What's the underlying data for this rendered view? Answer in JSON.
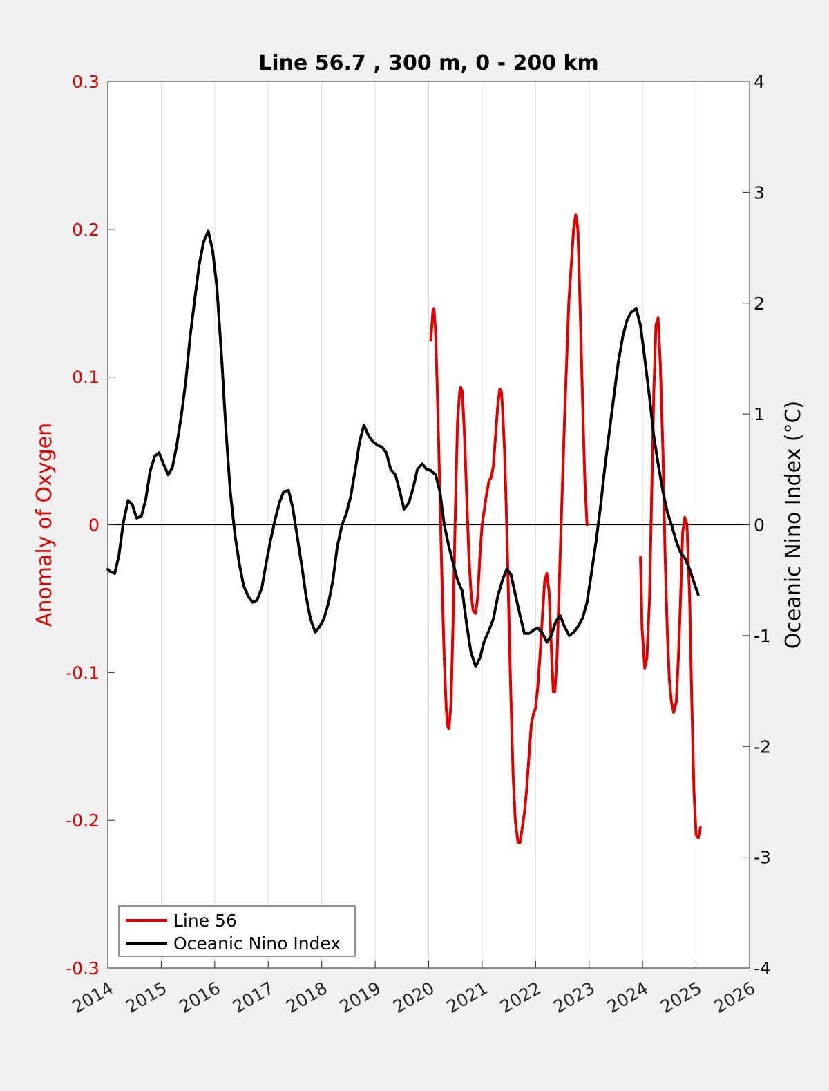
{
  "chart_data": {
    "type": "line",
    "title": "Line 56.7 , 300 m, 0 - 200 km",
    "ylabel_left": "Anomaly of Oxygen",
    "ylabel_right": "Oceanic Nino Index (°C)",
    "xlabel": "",
    "xlim": [
      2014,
      2026
    ],
    "ylim_left": [
      -0.3,
      0.3
    ],
    "ylim_right": [
      -4,
      4
    ],
    "x_ticks": [
      "2014",
      "2015",
      "2016",
      "2017",
      "2018",
      "2019",
      "2020",
      "2021",
      "2022",
      "2023",
      "2024",
      "2025",
      "2026"
    ],
    "y_ticks_left": [
      "0.3",
      "0.2",
      "0.1",
      "0",
      "-0.1",
      "-0.2",
      "-0.3"
    ],
    "y_ticks_right": [
      "4",
      "3",
      "2",
      "1",
      "0",
      "-1",
      "-2",
      "-3",
      "-4"
    ],
    "grid": "vertical",
    "legend_position": "bottom-left",
    "colors": {
      "left_axis": "#e00000",
      "line56": "#e00000",
      "oni": "#000000",
      "background": "#f0f0f0",
      "plot_bg": "#ffffff",
      "grid": "#dcdcdc"
    },
    "series": [
      {
        "name": "Line 56",
        "axis": "left",
        "segments": [
          [
            [
              2020.04,
              0.125
            ],
            [
              2020.08,
              0.145
            ],
            [
              2020.1,
              0.146
            ],
            [
              2020.13,
              0.13
            ],
            [
              2020.17,
              0.08
            ],
            [
              2020.21,
              0.02
            ],
            [
              2020.25,
              -0.04
            ],
            [
              2020.29,
              -0.09
            ],
            [
              2020.33,
              -0.125
            ],
            [
              2020.36,
              -0.137
            ],
            [
              2020.38,
              -0.138
            ],
            [
              2020.42,
              -0.12
            ],
            [
              2020.46,
              -0.06
            ],
            [
              2020.5,
              0.01
            ],
            [
              2020.54,
              0.07
            ],
            [
              2020.58,
              0.09
            ],
            [
              2020.6,
              0.093
            ],
            [
              2020.63,
              0.09
            ],
            [
              2020.67,
              0.06
            ],
            [
              2020.71,
              0.02
            ],
            [
              2020.75,
              -0.02
            ],
            [
              2020.79,
              -0.045
            ],
            [
              2020.83,
              -0.058
            ],
            [
              2020.88,
              -0.06
            ],
            [
              2020.92,
              -0.048
            ],
            [
              2020.96,
              -0.02
            ],
            [
              2021.0,
              0.0
            ],
            [
              2021.04,
              0.01
            ],
            [
              2021.08,
              0.02
            ],
            [
              2021.13,
              0.03
            ],
            [
              2021.17,
              0.032
            ],
            [
              2021.21,
              0.04
            ],
            [
              2021.25,
              0.06
            ],
            [
              2021.29,
              0.08
            ],
            [
              2021.33,
              0.092
            ],
            [
              2021.36,
              0.09
            ],
            [
              2021.38,
              0.08
            ],
            [
              2021.42,
              0.05
            ],
            [
              2021.46,
              0.0
            ],
            [
              2021.5,
              -0.06
            ],
            [
              2021.54,
              -0.12
            ],
            [
              2021.58,
              -0.17
            ],
            [
              2021.62,
              -0.2
            ],
            [
              2021.67,
              -0.215
            ],
            [
              2021.71,
              -0.215
            ],
            [
              2021.75,
              -0.205
            ],
            [
              2021.79,
              -0.195
            ],
            [
              2021.83,
              -0.18
            ],
            [
              2021.88,
              -0.155
            ],
            [
              2021.92,
              -0.135
            ],
            [
              2021.96,
              -0.128
            ],
            [
              2022.0,
              -0.124
            ],
            [
              2022.04,
              -0.11
            ],
            [
              2022.08,
              -0.09
            ],
            [
              2022.13,
              -0.06
            ],
            [
              2022.17,
              -0.038
            ],
            [
              2022.21,
              -0.033
            ],
            [
              2022.25,
              -0.045
            ],
            [
              2022.29,
              -0.08
            ],
            [
              2022.33,
              -0.113
            ],
            [
              2022.36,
              -0.113
            ],
            [
              2022.4,
              -0.09
            ],
            [
              2022.46,
              -0.02
            ],
            [
              2022.54,
              0.07
            ],
            [
              2022.62,
              0.15
            ],
            [
              2022.71,
              0.2
            ],
            [
              2022.75,
              0.21
            ],
            [
              2022.79,
              0.2
            ],
            [
              2022.83,
              0.15
            ],
            [
              2022.88,
              0.08
            ],
            [
              2022.92,
              0.03
            ],
            [
              2022.96,
              0.0
            ]
          ],
          [
            [
              2023.96,
              -0.022
            ],
            [
              2023.99,
              -0.07
            ],
            [
              2024.04,
              -0.097
            ],
            [
              2024.08,
              -0.09
            ],
            [
              2024.13,
              -0.05
            ],
            [
              2024.17,
              0.02
            ],
            [
              2024.21,
              0.09
            ],
            [
              2024.25,
              0.135
            ],
            [
              2024.29,
              0.14
            ],
            [
              2024.33,
              0.11
            ],
            [
              2024.38,
              0.05
            ],
            [
              2024.42,
              -0.02
            ],
            [
              2024.46,
              -0.07
            ],
            [
              2024.5,
              -0.105
            ],
            [
              2024.54,
              -0.12
            ],
            [
              2024.58,
              -0.127
            ],
            [
              2024.63,
              -0.12
            ],
            [
              2024.67,
              -0.09
            ],
            [
              2024.71,
              -0.05
            ],
            [
              2024.75,
              -0.005
            ],
            [
              2024.79,
              0.005
            ],
            [
              2024.83,
              0.0
            ],
            [
              2024.88,
              -0.05
            ],
            [
              2024.92,
              -0.12
            ],
            [
              2024.96,
              -0.18
            ],
            [
              2025.0,
              -0.21
            ],
            [
              2025.04,
              -0.212
            ],
            [
              2025.08,
              -0.205
            ]
          ]
        ]
      },
      {
        "name": "Oceanic Nino Index",
        "axis": "right",
        "points": [
          [
            2014.0,
            -0.4
          ],
          [
            2014.04,
            -0.42
          ],
          [
            2014.13,
            -0.44
          ],
          [
            2014.21,
            -0.27
          ],
          [
            2014.29,
            0.02
          ],
          [
            2014.38,
            0.22
          ],
          [
            2014.46,
            0.18
          ],
          [
            2014.54,
            0.06
          ],
          [
            2014.63,
            0.08
          ],
          [
            2014.71,
            0.23
          ],
          [
            2014.79,
            0.48
          ],
          [
            2014.88,
            0.62
          ],
          [
            2014.96,
            0.65
          ],
          [
            2015.04,
            0.55
          ],
          [
            2015.13,
            0.45
          ],
          [
            2015.21,
            0.52
          ],
          [
            2015.29,
            0.72
          ],
          [
            2015.38,
            1.0
          ],
          [
            2015.46,
            1.3
          ],
          [
            2015.54,
            1.7
          ],
          [
            2015.63,
            2.05
          ],
          [
            2015.71,
            2.35
          ],
          [
            2015.79,
            2.55
          ],
          [
            2015.88,
            2.65
          ],
          [
            2015.96,
            2.48
          ],
          [
            2016.04,
            2.15
          ],
          [
            2016.13,
            1.5
          ],
          [
            2016.21,
            0.85
          ],
          [
            2016.29,
            0.3
          ],
          [
            2016.38,
            -0.1
          ],
          [
            2016.46,
            -0.35
          ],
          [
            2016.54,
            -0.55
          ],
          [
            2016.63,
            -0.65
          ],
          [
            2016.71,
            -0.7
          ],
          [
            2016.79,
            -0.68
          ],
          [
            2016.88,
            -0.57
          ],
          [
            2016.96,
            -0.35
          ],
          [
            2017.04,
            -0.15
          ],
          [
            2017.13,
            0.05
          ],
          [
            2017.21,
            0.2
          ],
          [
            2017.29,
            0.3
          ],
          [
            2017.38,
            0.31
          ],
          [
            2017.46,
            0.15
          ],
          [
            2017.54,
            -0.1
          ],
          [
            2017.63,
            -0.38
          ],
          [
            2017.71,
            -0.65
          ],
          [
            2017.79,
            -0.85
          ],
          [
            2017.88,
            -0.97
          ],
          [
            2017.96,
            -0.92
          ],
          [
            2018.04,
            -0.85
          ],
          [
            2018.13,
            -0.7
          ],
          [
            2018.21,
            -0.5
          ],
          [
            2018.29,
            -0.2
          ],
          [
            2018.38,
            0.0
          ],
          [
            2018.46,
            0.1
          ],
          [
            2018.54,
            0.25
          ],
          [
            2018.63,
            0.5
          ],
          [
            2018.71,
            0.75
          ],
          [
            2018.79,
            0.9
          ],
          [
            2018.88,
            0.8
          ],
          [
            2018.96,
            0.75
          ],
          [
            2019.04,
            0.72
          ],
          [
            2019.13,
            0.7
          ],
          [
            2019.21,
            0.65
          ],
          [
            2019.29,
            0.5
          ],
          [
            2019.38,
            0.45
          ],
          [
            2019.46,
            0.3
          ],
          [
            2019.54,
            0.14
          ],
          [
            2019.63,
            0.2
          ],
          [
            2019.71,
            0.33
          ],
          [
            2019.79,
            0.5
          ],
          [
            2019.88,
            0.55
          ],
          [
            2019.96,
            0.5
          ],
          [
            2020.04,
            0.49
          ],
          [
            2020.13,
            0.45
          ],
          [
            2020.21,
            0.3
          ],
          [
            2020.29,
            0.0
          ],
          [
            2020.38,
            -0.2
          ],
          [
            2020.46,
            -0.35
          ],
          [
            2020.54,
            -0.5
          ],
          [
            2020.63,
            -0.6
          ],
          [
            2020.71,
            -0.9
          ],
          [
            2020.79,
            -1.15
          ],
          [
            2020.88,
            -1.28
          ],
          [
            2020.96,
            -1.2
          ],
          [
            2021.04,
            -1.05
          ],
          [
            2021.13,
            -0.95
          ],
          [
            2021.21,
            -0.85
          ],
          [
            2021.29,
            -0.65
          ],
          [
            2021.38,
            -0.5
          ],
          [
            2021.46,
            -0.4
          ],
          [
            2021.54,
            -0.45
          ],
          [
            2021.63,
            -0.65
          ],
          [
            2021.71,
            -0.82
          ],
          [
            2021.79,
            -0.98
          ],
          [
            2021.88,
            -0.98
          ],
          [
            2021.96,
            -0.95
          ],
          [
            2022.04,
            -0.93
          ],
          [
            2022.13,
            -0.98
          ],
          [
            2022.21,
            -1.06
          ],
          [
            2022.29,
            -1.0
          ],
          [
            2022.38,
            -0.87
          ],
          [
            2022.46,
            -0.82
          ],
          [
            2022.54,
            -0.92
          ],
          [
            2022.63,
            -1.0
          ],
          [
            2022.71,
            -0.97
          ],
          [
            2022.79,
            -0.92
          ],
          [
            2022.88,
            -0.84
          ],
          [
            2022.96,
            -0.7
          ],
          [
            2023.04,
            -0.45
          ],
          [
            2023.13,
            -0.15
          ],
          [
            2023.21,
            0.15
          ],
          [
            2023.29,
            0.5
          ],
          [
            2023.38,
            0.85
          ],
          [
            2023.46,
            1.15
          ],
          [
            2023.54,
            1.45
          ],
          [
            2023.63,
            1.7
          ],
          [
            2023.71,
            1.85
          ],
          [
            2023.79,
            1.92
          ],
          [
            2023.88,
            1.95
          ],
          [
            2023.96,
            1.8
          ],
          [
            2024.04,
            1.5
          ],
          [
            2024.13,
            1.15
          ],
          [
            2024.21,
            0.8
          ],
          [
            2024.29,
            0.55
          ],
          [
            2024.38,
            0.3
          ],
          [
            2024.46,
            0.12
          ],
          [
            2024.54,
            0.0
          ],
          [
            2024.63,
            -0.15
          ],
          [
            2024.71,
            -0.25
          ],
          [
            2024.79,
            -0.3
          ],
          [
            2024.88,
            -0.4
          ],
          [
            2024.96,
            -0.52
          ],
          [
            2025.04,
            -0.63
          ]
        ]
      }
    ]
  }
}
